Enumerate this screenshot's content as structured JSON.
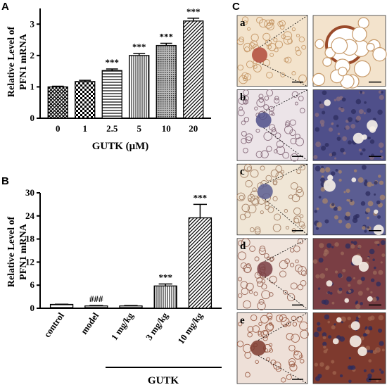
{
  "chart_data": [
    {
      "panel": "A",
      "type": "bar",
      "ylabel_line1": "Relative Level of",
      "ylabel_line2": "PFN1 mRNA",
      "xlabel": "GUTK (μM)",
      "categories": [
        "0",
        "1",
        "2.5",
        "5",
        "10",
        "20"
      ],
      "values": [
        1.0,
        1.17,
        1.52,
        2.0,
        2.32,
        3.1
      ],
      "errors": [
        0.02,
        0.04,
        0.05,
        0.06,
        0.07,
        0.09
      ],
      "annotations": [
        "",
        "",
        "***",
        "***",
        "***",
        "***"
      ],
      "ylim": [
        0,
        3.5
      ],
      "yticks": [
        "0",
        "1",
        "2",
        "3"
      ],
      "patterns": [
        "crosshatch",
        "checker",
        "hlines",
        "vlines",
        "dots",
        "diagonal"
      ]
    },
    {
      "panel": "B",
      "type": "bar",
      "ylabel_line1": "Relative Level of",
      "ylabel_line2": "PFN1 mRNA",
      "group_label": "GUTK",
      "categories": [
        "control",
        "model",
        "1 mg/kg",
        "3 mg/kg",
        "10 mg/kg"
      ],
      "values": [
        1.0,
        0.6,
        0.6,
        5.8,
        23.5
      ],
      "errors": [
        0.05,
        0.1,
        0.1,
        0.5,
        3.5
      ],
      "annotations": [
        "",
        "###",
        "",
        "***",
        "***"
      ],
      "ylim": [
        0,
        30
      ],
      "yticks": [
        "0",
        "6",
        "12",
        "18",
        "24",
        "30"
      ],
      "patterns": [
        "hlines",
        "hlines",
        "hlines",
        "vlines",
        "diagonal"
      ]
    }
  ],
  "panels": {
    "A": "A",
    "B": "B",
    "C": "C"
  },
  "micrographs": {
    "rows": [
      "a",
      "b",
      "c",
      "d",
      "e"
    ],
    "row_colors": [
      {
        "bg": "#f3e3cc",
        "tissue": "#c79a6a",
        "lesion": "#b04a3a"
      },
      {
        "bg": "#ece4e8",
        "tissue": "#8a6e7e",
        "lesion": "#4f4f8a"
      },
      {
        "bg": "#f0e6d6",
        "tissue": "#a8856a",
        "lesion": "#5b5d92"
      },
      {
        "bg": "#f0e4dc",
        "tissue": "#9c6a5a",
        "lesion": "#7a3e44"
      },
      {
        "bg": "#eee0d8",
        "tissue": "#a0644e",
        "lesion": "#7e3a2e"
      }
    ]
  }
}
